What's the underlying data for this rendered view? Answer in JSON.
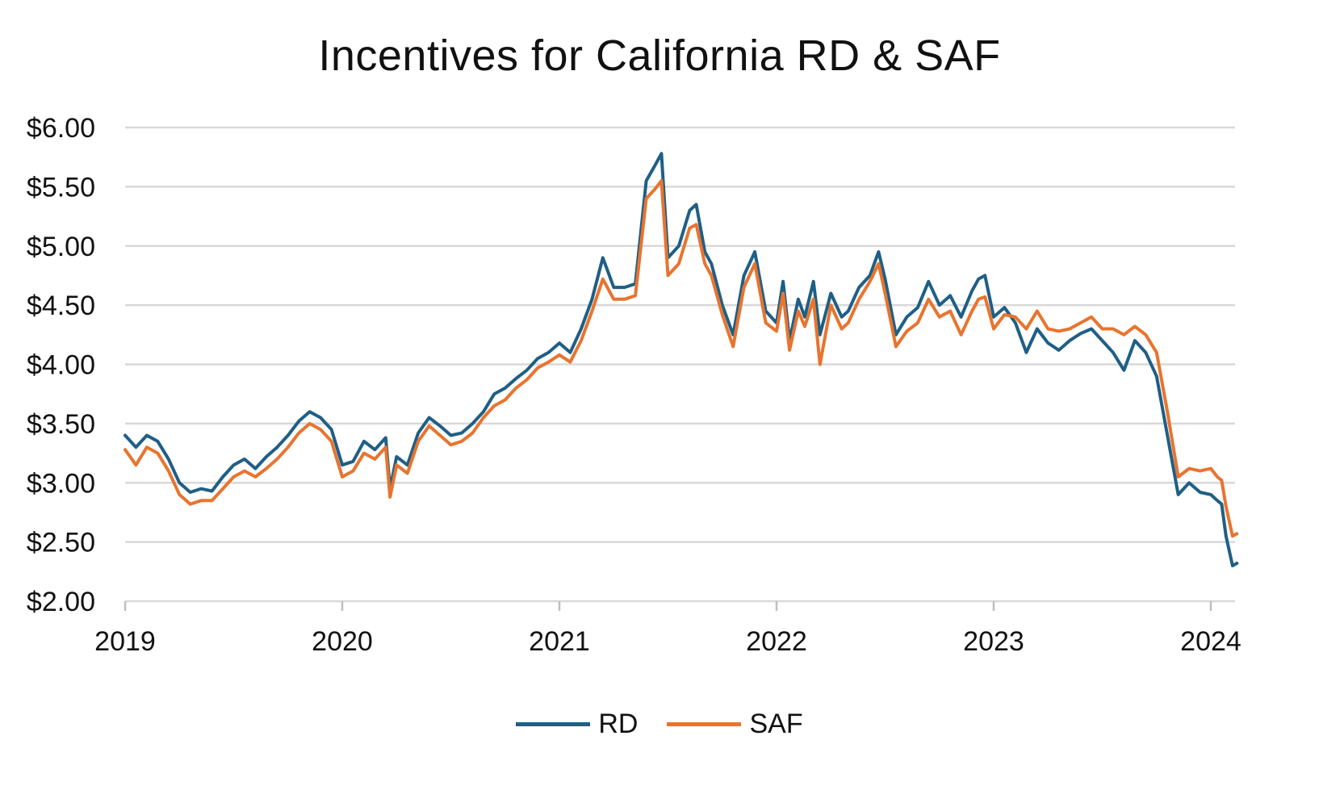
{
  "chart_data": {
    "type": "line",
    "title": "Incentives for California RD & SAF",
    "xlabel": "",
    "ylabel": "",
    "x_ticks": [
      "2019",
      "2020",
      "2021",
      "2022",
      "2023",
      "2024"
    ],
    "x_range": [
      2019.0,
      2024.12
    ],
    "ylim": [
      2.0,
      6.0
    ],
    "y_ticks": [
      "$2.00",
      "$2.50",
      "$3.00",
      "$3.50",
      "$4.00",
      "$4.50",
      "$5.00",
      "$5.50",
      "$6.00"
    ],
    "grid": true,
    "legend_position": "bottom",
    "x": [
      2019.0,
      2019.05,
      2019.1,
      2019.15,
      2019.2,
      2019.25,
      2019.3,
      2019.35,
      2019.4,
      2019.45,
      2019.5,
      2019.55,
      2019.6,
      2019.65,
      2019.7,
      2019.75,
      2019.8,
      2019.85,
      2019.9,
      2019.95,
      2020.0,
      2020.05,
      2020.1,
      2020.15,
      2020.2,
      2020.22,
      2020.25,
      2020.3,
      2020.35,
      2020.4,
      2020.45,
      2020.5,
      2020.55,
      2020.6,
      2020.65,
      2020.7,
      2020.75,
      2020.8,
      2020.85,
      2020.9,
      2020.95,
      2021.0,
      2021.05,
      2021.1,
      2021.15,
      2021.2,
      2021.25,
      2021.3,
      2021.35,
      2021.4,
      2021.44,
      2021.47,
      2021.5,
      2021.55,
      2021.6,
      2021.63,
      2021.67,
      2021.7,
      2021.75,
      2021.8,
      2021.85,
      2021.9,
      2021.95,
      2022.0,
      2022.03,
      2022.06,
      2022.1,
      2022.13,
      2022.17,
      2022.2,
      2022.25,
      2022.3,
      2022.33,
      2022.38,
      2022.43,
      2022.47,
      2022.5,
      2022.55,
      2022.6,
      2022.65,
      2022.7,
      2022.75,
      2022.8,
      2022.85,
      2022.9,
      2022.93,
      2022.96,
      2023.0,
      2023.05,
      2023.1,
      2023.15,
      2023.2,
      2023.25,
      2023.3,
      2023.35,
      2023.4,
      2023.45,
      2023.5,
      2023.55,
      2023.6,
      2023.65,
      2023.7,
      2023.75,
      2023.8,
      2023.85,
      2023.9,
      2023.95,
      2024.0,
      2024.03,
      2024.05,
      2024.07,
      2024.1,
      2024.12
    ],
    "series": [
      {
        "name": "RD",
        "color": "#1f5f86",
        "values": [
          3.4,
          3.3,
          3.4,
          3.35,
          3.2,
          3.0,
          2.92,
          2.95,
          2.93,
          3.05,
          3.15,
          3.2,
          3.12,
          3.22,
          3.3,
          3.4,
          3.52,
          3.6,
          3.55,
          3.45,
          3.15,
          3.18,
          3.35,
          3.28,
          3.38,
          2.95,
          3.22,
          3.15,
          3.42,
          3.55,
          3.48,
          3.4,
          3.42,
          3.5,
          3.6,
          3.75,
          3.8,
          3.88,
          3.95,
          4.05,
          4.1,
          4.18,
          4.1,
          4.3,
          4.55,
          4.9,
          4.65,
          4.65,
          4.68,
          5.55,
          5.68,
          5.78,
          4.9,
          5.0,
          5.3,
          5.35,
          4.95,
          4.85,
          4.5,
          4.25,
          4.75,
          4.95,
          4.45,
          4.35,
          4.7,
          4.2,
          4.55,
          4.4,
          4.7,
          4.25,
          4.6,
          4.4,
          4.45,
          4.65,
          4.75,
          4.95,
          4.72,
          4.25,
          4.4,
          4.48,
          4.7,
          4.5,
          4.58,
          4.4,
          4.62,
          4.72,
          4.75,
          4.4,
          4.48,
          4.35,
          4.1,
          4.3,
          4.18,
          4.12,
          4.2,
          4.26,
          4.3,
          4.2,
          4.1,
          3.95,
          4.2,
          4.1,
          3.9,
          3.4,
          2.9,
          3.0,
          2.92,
          2.9,
          2.85,
          2.82,
          2.55,
          2.3,
          2.32
        ]
      },
      {
        "name": "SAF",
        "color": "#e8742f",
        "values": [
          3.28,
          3.15,
          3.3,
          3.25,
          3.1,
          2.9,
          2.82,
          2.85,
          2.85,
          2.95,
          3.05,
          3.1,
          3.05,
          3.12,
          3.2,
          3.3,
          3.42,
          3.5,
          3.45,
          3.35,
          3.05,
          3.1,
          3.25,
          3.2,
          3.3,
          2.88,
          3.15,
          3.08,
          3.35,
          3.48,
          3.4,
          3.32,
          3.35,
          3.42,
          3.55,
          3.65,
          3.7,
          3.8,
          3.87,
          3.97,
          4.02,
          4.08,
          4.02,
          4.2,
          4.45,
          4.72,
          4.55,
          4.55,
          4.58,
          5.4,
          5.48,
          5.55,
          4.75,
          4.85,
          5.15,
          5.18,
          4.85,
          4.75,
          4.42,
          4.15,
          4.65,
          4.85,
          4.35,
          4.28,
          4.6,
          4.12,
          4.45,
          4.32,
          4.55,
          4.0,
          4.5,
          4.3,
          4.35,
          4.55,
          4.7,
          4.85,
          4.6,
          4.15,
          4.28,
          4.35,
          4.55,
          4.4,
          4.45,
          4.25,
          4.45,
          4.55,
          4.57,
          4.3,
          4.42,
          4.4,
          4.3,
          4.45,
          4.3,
          4.28,
          4.3,
          4.35,
          4.4,
          4.3,
          4.3,
          4.25,
          4.32,
          4.25,
          4.1,
          3.6,
          3.05,
          3.12,
          3.1,
          3.12,
          3.05,
          3.02,
          2.8,
          2.55,
          2.57
        ]
      }
    ]
  }
}
